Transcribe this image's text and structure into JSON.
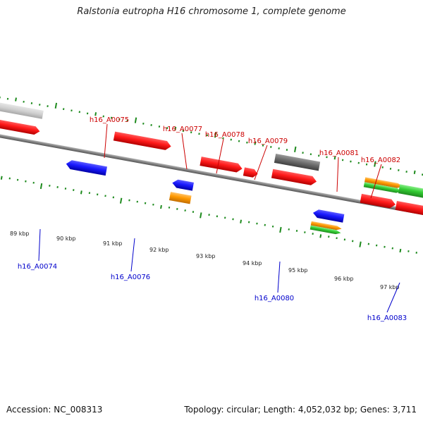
{
  "title": "Ralstonia eutropha H16 chromosome 1, complete genome",
  "footer": {
    "accession": "Accession: NC_008313",
    "summary": "Topology: circular; Length: 4,052,032 bp; Genes: 3,711"
  },
  "colors": {
    "backbone": "#7f7f7f",
    "ticks": "#1d8a1d",
    "forward_label": "#cc0000",
    "reverse_label": "#0000cc",
    "cds": "#ff1a1a",
    "gene_blue": "#1a1aff",
    "gray": "#6e6e6e",
    "orange": "#ff9900",
    "green": "#33cc33"
  },
  "scale_labels": [
    "89 kbp",
    "90 kbp",
    "91 kbp",
    "92 kbp",
    "93 kbp",
    "94 kbp",
    "95 kbp",
    "96 kbp",
    "97 kbp"
  ],
  "forward_genes": [
    "h16_A0075",
    "h16_A0077",
    "h16_A0078",
    "h16_A0079",
    "h16_A0081",
    "h16_A0082"
  ],
  "reverse_genes": [
    "h16_A0074",
    "h16_A0076",
    "h16_A0080",
    "h16_A0083"
  ]
}
